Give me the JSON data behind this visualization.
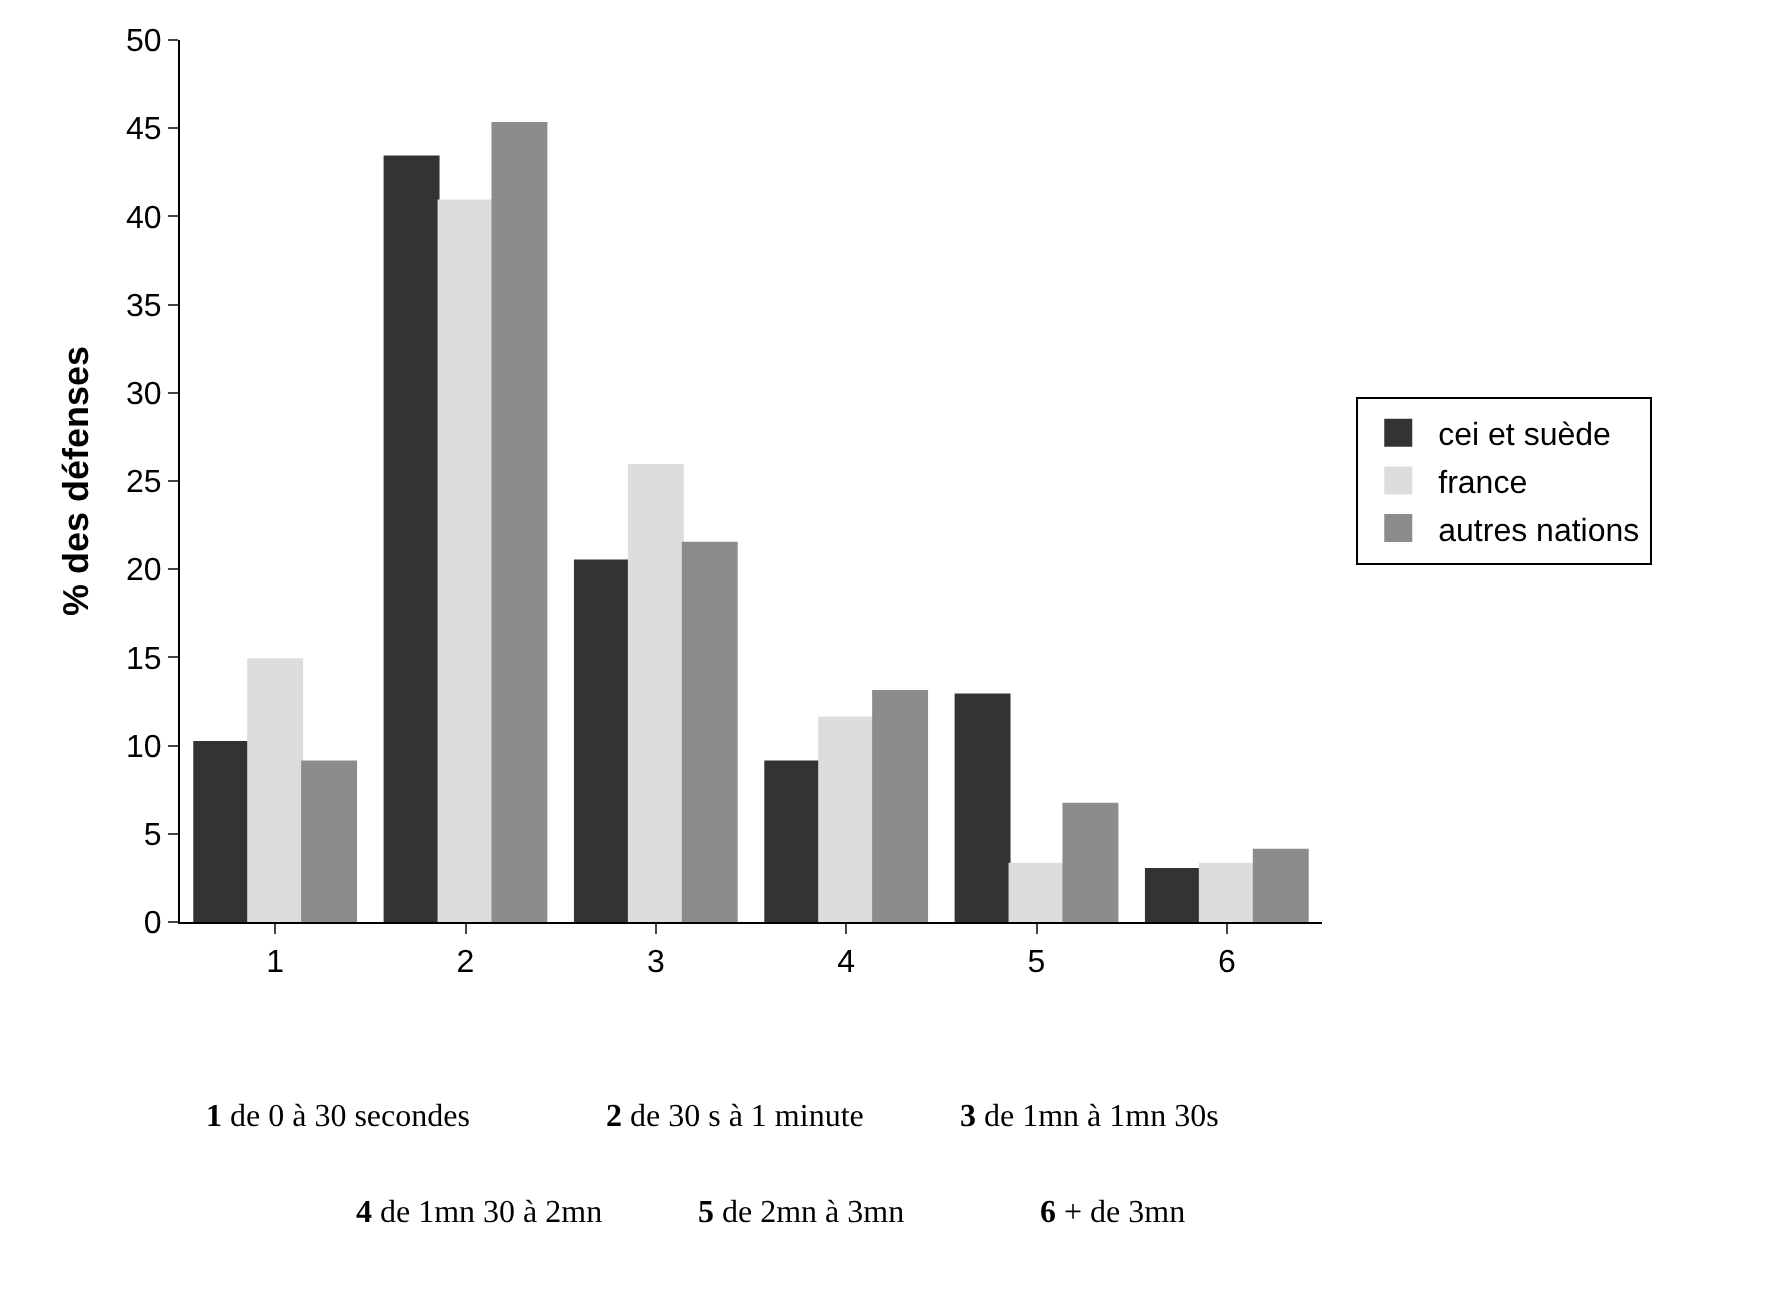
{
  "chart_data": {
    "type": "bar",
    "ylabel": "% des défenses",
    "categories": [
      "1",
      "2",
      "3",
      "4",
      "5",
      "6"
    ],
    "series": [
      {
        "name": "cei et suède",
        "color": "#333333",
        "values": [
          10.2,
          43.4,
          20.5,
          9.1,
          12.9,
          3.0
        ]
      },
      {
        "name": "france",
        "color": "#dddddd",
        "values": [
          14.9,
          40.9,
          25.9,
          11.6,
          3.3,
          3.3
        ]
      },
      {
        "name": "autres nations",
        "color": "#8c8c8c",
        "values": [
          9.1,
          45.3,
          21.5,
          13.1,
          6.7,
          4.1
        ]
      }
    ],
    "ylim": [
      0,
      50
    ],
    "yticks": [
      0,
      5,
      10,
      15,
      20,
      25,
      30,
      35,
      40,
      45,
      50
    ],
    "grid": false,
    "legend": "right",
    "annotations": [
      "1 de 0 à 30 secondes",
      "2 de 30 s à 1 minute",
      "3 de 1mn à 1mn 30s",
      "4 de 1mn 30 à 2mn",
      "5 de 2mn à 3mn",
      "6 + de 3mn"
    ]
  }
}
